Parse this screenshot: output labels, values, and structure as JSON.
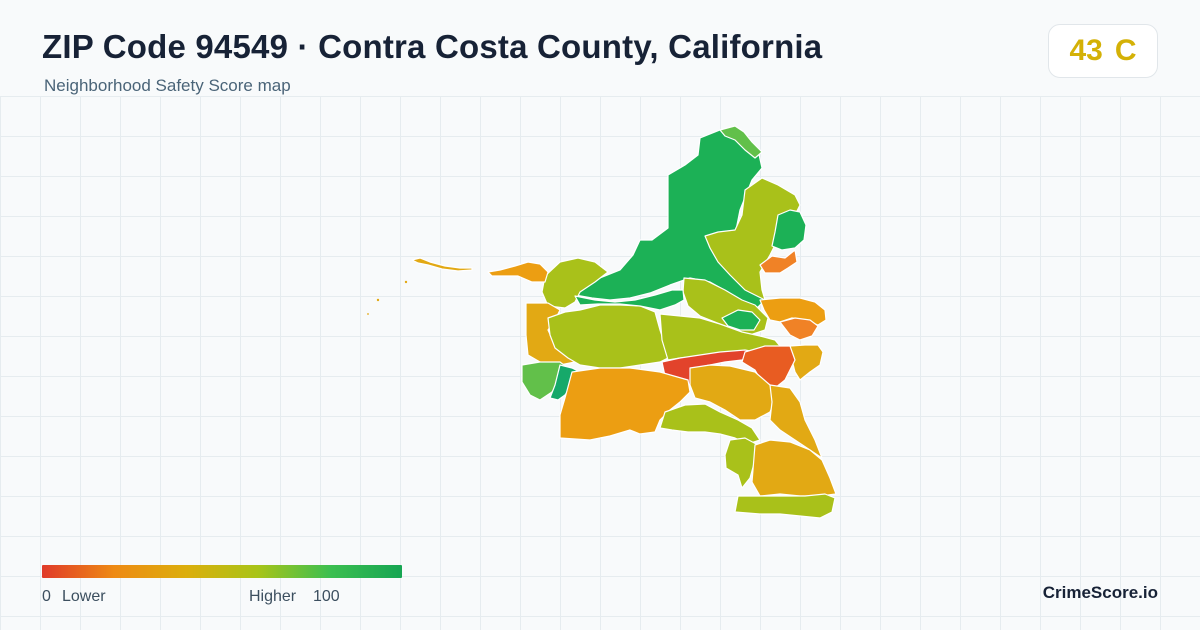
{
  "header": {
    "title": "ZIP Code 94549 · Contra Costa County, California",
    "subtitle": "Neighborhood Safety Score map"
  },
  "score": {
    "value": "43",
    "grade": "C",
    "color": "#d4b106"
  },
  "legend": {
    "low_value": "0",
    "low_label": "Lower",
    "high_label": "Higher",
    "high_value": "100",
    "gradient_colors": [
      "#e03a2a",
      "#ee8a14",
      "#dcae0c",
      "#a8c418",
      "#3cbf50",
      "#16a552"
    ]
  },
  "brand": "CrimeScore.io",
  "map": {
    "colors": {
      "red": "#e2432b",
      "red_orange": "#e85c22",
      "orange": "#f08226",
      "orange_yellow": "#ec9e12",
      "amber": "#e2a914",
      "yellow_green": "#a9c11a",
      "lime": "#8cc22a",
      "light_green": "#62c04a",
      "green": "#1cb156",
      "teal_green": "#16a96a"
    }
  }
}
